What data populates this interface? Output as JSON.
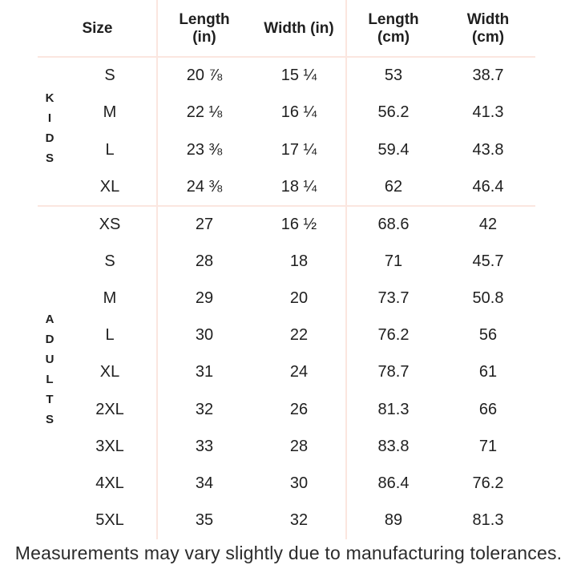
{
  "chart_data": {
    "type": "table",
    "columns": [
      "Size",
      "Length\n(in)",
      "Width (in)",
      "Length\n(cm)",
      "Width\n(cm)"
    ],
    "row_groups": [
      {
        "group": "KIDS",
        "rows": [
          {
            "size": "S",
            "length_in": "20 ⅞",
            "width_in": "15 ¼",
            "length_cm": "53",
            "width_cm": "38.7"
          },
          {
            "size": "M",
            "length_in": "22 ⅛",
            "width_in": "16 ¼",
            "length_cm": "56.2",
            "width_cm": "41.3"
          },
          {
            "size": "L",
            "length_in": "23 ⅜",
            "width_in": "17 ¼",
            "length_cm": "59.4",
            "width_cm": "43.8"
          },
          {
            "size": "XL",
            "length_in": "24 ⅜",
            "width_in": "18 ¼",
            "length_cm": "62",
            "width_cm": "46.4"
          }
        ]
      },
      {
        "group": "ADULTS",
        "rows": [
          {
            "size": "XS",
            "length_in": "27",
            "width_in": "16 ½",
            "length_cm": "68.6",
            "width_cm": "42"
          },
          {
            "size": "S",
            "length_in": "28",
            "width_in": "18",
            "length_cm": "71",
            "width_cm": "45.7"
          },
          {
            "size": "M",
            "length_in": "29",
            "width_in": "20",
            "length_cm": "73.7",
            "width_cm": "50.8"
          },
          {
            "size": "L",
            "length_in": "30",
            "width_in": "22",
            "length_cm": "76.2",
            "width_cm": "56"
          },
          {
            "size": "XL",
            "length_in": "31",
            "width_in": "24",
            "length_cm": "78.7",
            "width_cm": "61"
          },
          {
            "size": "2XL",
            "length_in": "32",
            "width_in": "26",
            "length_cm": "81.3",
            "width_cm": "66"
          },
          {
            "size": "3XL",
            "length_in": "33",
            "width_in": "28",
            "length_cm": "83.8",
            "width_cm": "71"
          },
          {
            "size": "4XL",
            "length_in": "34",
            "width_in": "30",
            "length_cm": "86.4",
            "width_cm": "76.2"
          },
          {
            "size": "5XL",
            "length_in": "35",
            "width_in": "32",
            "length_cm": "89",
            "width_cm": "81.3"
          }
        ]
      }
    ],
    "footnote": "Measurements may vary slightly due to manufacturing tolerances.",
    "layout": {
      "grid": "off",
      "legend": "none"
    }
  },
  "colors": {
    "divider_line": "#fbe6df",
    "text": "#1f1f1f",
    "footnote_text": "#2b2b2b",
    "background": "#ffffff"
  }
}
